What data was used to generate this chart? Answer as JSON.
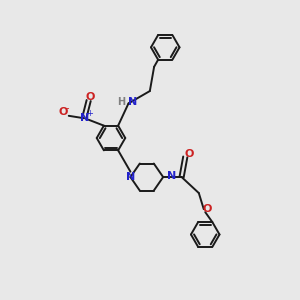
{
  "bg_color": "#e8e8e8",
  "bond_color": "#1a1a1a",
  "N_color": "#2222cc",
  "O_color": "#cc2222",
  "H_color": "#808080",
  "line_width": 1.4,
  "figsize": [
    3.0,
    3.0
  ],
  "dpi": 100,
  "xlim": [
    0,
    10
  ],
  "ylim": [
    0,
    10
  ]
}
